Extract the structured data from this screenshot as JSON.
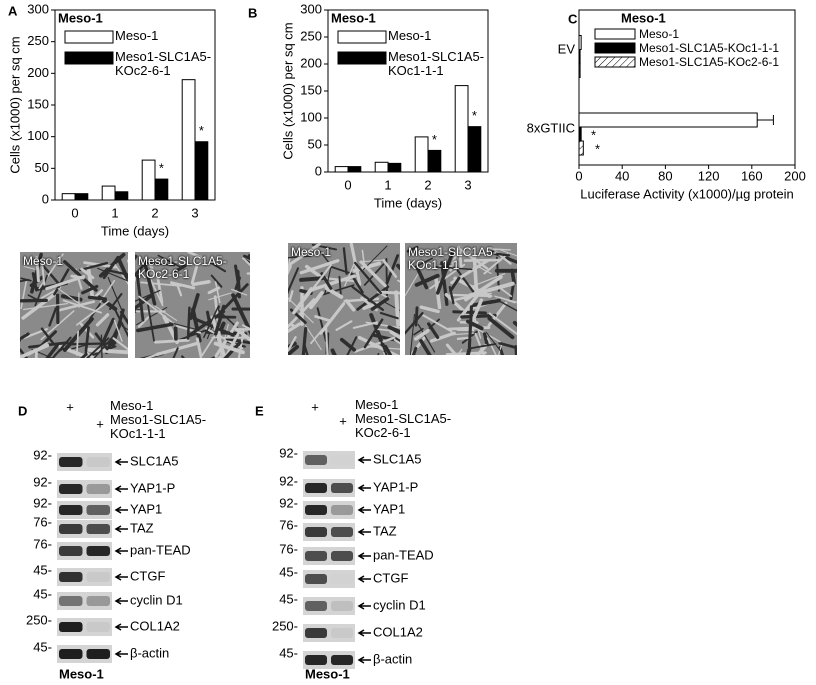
{
  "chart_data": [
    {
      "type": "bar",
      "panel": "A",
      "legend_title": "Meso-1",
      "xlabel": "Time (days)",
      "ylabel": "Cells (x1000) per sq cm",
      "categories": [
        "0",
        "1",
        "2",
        "3"
      ],
      "series": [
        {
          "name": "Meso-1",
          "color": "#ffffff",
          "values": [
            10,
            22,
            63,
            190
          ]
        },
        {
          "name": "Meso1-SLC1A5-KOc2-6-1",
          "color": "#000000",
          "values": [
            10,
            13,
            33,
            92
          ]
        }
      ],
      "ylim": [
        0,
        300
      ],
      "yticks": [
        0,
        50,
        100,
        150,
        200,
        250,
        300
      ],
      "annotations": [
        "*",
        "*"
      ]
    },
    {
      "type": "bar",
      "panel": "B",
      "legend_title": "Meso-1",
      "xlabel": "Time (days)",
      "ylabel": "Cells (x1000) per sq cm",
      "categories": [
        "0",
        "1",
        "2",
        "3"
      ],
      "series": [
        {
          "name": "Meso-1",
          "color": "#ffffff",
          "values": [
            10,
            18,
            65,
            160
          ]
        },
        {
          "name": "Meso1-SLC1A5-KOc1-1-1",
          "color": "#000000",
          "values": [
            10,
            16,
            40,
            84
          ]
        }
      ],
      "ylim": [
        0,
        300
      ],
      "yticks": [
        0,
        50,
        100,
        150,
        200,
        250,
        300
      ],
      "annotations": [
        "*",
        "*"
      ]
    },
    {
      "type": "hbar",
      "panel": "C",
      "legend_title": "Meso-1",
      "xlabel": "Luciferase Activity (x1000)/µg protein",
      "categories": [
        "EV",
        "8xGTIIC"
      ],
      "series": [
        {
          "name": "Meso-1",
          "color": "#ffffff",
          "values": [
            2,
            165
          ],
          "errors": [
            null,
            15
          ]
        },
        {
          "name": "Meso1-SLC1A5-KOc1-1-1",
          "color": "#000000",
          "values": [
            1,
            2
          ]
        },
        {
          "name": "Meso1-SLC1A5-KOc2-6-1",
          "color": "#ffffff",
          "hatch": true,
          "values": [
            1,
            4
          ]
        }
      ],
      "xlim": [
        0,
        200
      ],
      "xticks": [
        0,
        40,
        80,
        120,
        160,
        200
      ],
      "annotations": [
        "*",
        "*"
      ]
    }
  ],
  "micrographs": [
    [
      "Meso-1",
      "Meso1-SLC1A5-KOc2-6-1"
    ],
    [
      "Meso-1",
      "Meso1-SLC1A5-KOc1-1-1"
    ]
  ],
  "blots": [
    {
      "panel": "D",
      "lanes": [
        "+",
        "+"
      ],
      "lane_labels": [
        "Meso-1",
        "Meso1-SLC1A5-KOc1-1-1"
      ],
      "footer": "Meso-1",
      "rows": [
        {
          "marker": "92-",
          "label": "SLC1A5"
        },
        {
          "marker": "92-",
          "label": "YAP1-P"
        },
        {
          "marker": "92-",
          "label": "YAP1"
        },
        {
          "marker": "76-",
          "label": "TAZ"
        },
        {
          "marker": "76-",
          "label": "pan-TEAD"
        },
        {
          "marker": "45-",
          "label": "CTGF"
        },
        {
          "marker": "45-",
          "label": "cyclin D1"
        },
        {
          "marker": "250-",
          "label": "COL1A2"
        },
        {
          "marker": "45-",
          "label": "β-actin"
        }
      ]
    },
    {
      "panel": "E",
      "lanes": [
        "+",
        "+"
      ],
      "lane_labels": [
        "Meso-1",
        "Meso1-SLC1A5-KOc2-6-1"
      ],
      "footer": "Meso-1",
      "rows": [
        {
          "marker": "92-",
          "label": "SLC1A5"
        },
        {
          "marker": "92-",
          "label": "YAP1-P"
        },
        {
          "marker": "92-",
          "label": "YAP1"
        },
        {
          "marker": "76-",
          "label": "TAZ"
        },
        {
          "marker": "76-",
          "label": "pan-TEAD"
        },
        {
          "marker": "45-",
          "label": "CTGF"
        },
        {
          "marker": "45-",
          "label": "cyclin D1"
        },
        {
          "marker": "250-",
          "label": "COL1A2"
        },
        {
          "marker": "45-",
          "label": "β-actin"
        }
      ]
    }
  ]
}
